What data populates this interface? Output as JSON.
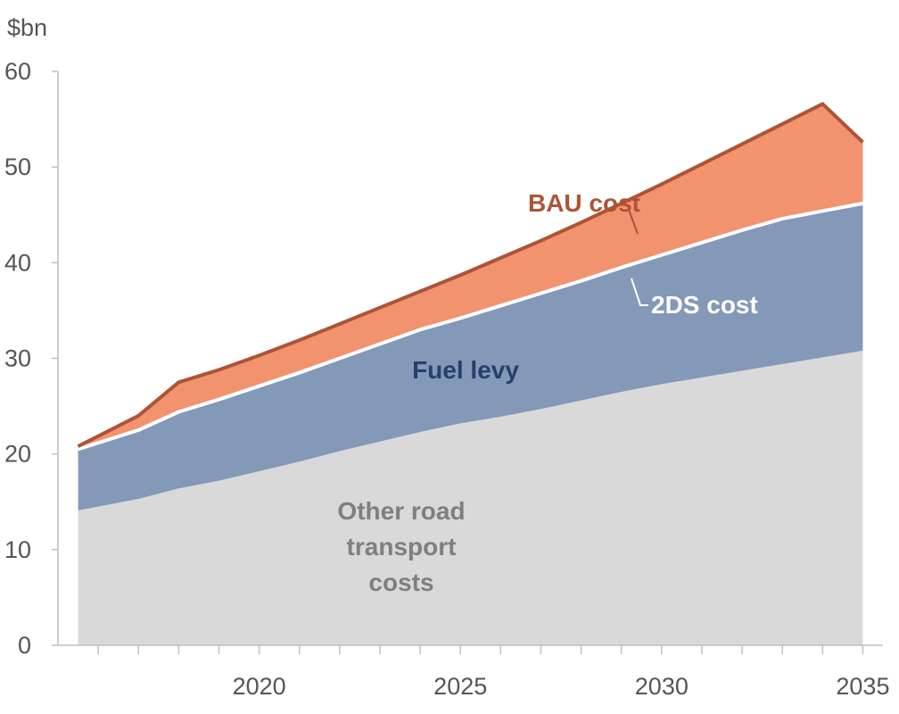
{
  "chart_data": {
    "type": "area",
    "y_unit_label": "$bn",
    "ylim": [
      0,
      60
    ],
    "y_ticks": [
      0,
      10,
      20,
      30,
      40,
      50,
      60
    ],
    "xlim": [
      2015,
      2035.5
    ],
    "x_ticks": [
      2020,
      2025,
      2030,
      2035
    ],
    "x_minor_ticks": [
      2016,
      2017,
      2018,
      2019,
      2021,
      2022,
      2023,
      2024,
      2026,
      2027,
      2028,
      2029,
      2031,
      2032,
      2033,
      2034
    ],
    "grid": false,
    "stacking": "cumulative",
    "x": [
      2015.5,
      2017,
      2018,
      2019,
      2020,
      2021,
      2022,
      2023,
      2024,
      2025,
      2026,
      2027,
      2028,
      2029,
      2030,
      2031,
      2032,
      2033,
      2034,
      2035
    ],
    "series": [
      {
        "key": "other",
        "name": "Other road transport costs",
        "color": "#d9d9d9",
        "top_values": [
          14.1,
          15.3,
          16.4,
          17.2,
          18.2,
          19.2,
          20.3,
          21.3,
          22.3,
          23.2,
          23.9,
          24.7,
          25.6,
          26.5,
          27.3,
          28.0,
          28.7,
          29.4,
          30.1,
          30.8
        ]
      },
      {
        "key": "two_ds",
        "name": "2DS cost",
        "color": "#8498b8",
        "line_color": "#ffffff",
        "top_values": [
          20.5,
          22.5,
          24.4,
          25.7,
          27.1,
          28.5,
          30.0,
          31.5,
          33.0,
          34.2,
          35.5,
          36.8,
          38.1,
          39.5,
          40.8,
          42.1,
          43.4,
          44.6,
          45.4,
          46.2
        ]
      },
      {
        "key": "bau",
        "name": "BAU cost",
        "color": "#f1936e",
        "line_color": "#ad5436",
        "top_values": [
          20.8,
          24.0,
          27.5,
          28.8,
          30.3,
          31.9,
          33.6,
          35.3,
          37.0,
          38.7,
          40.5,
          42.3,
          44.2,
          46.2,
          48.2,
          50.3,
          52.4,
          54.5,
          56.6,
          52.6
        ]
      }
    ],
    "annotations": {
      "bau": "BAU cost",
      "two_ds": "2DS cost",
      "fuel_levy": "Fuel levy",
      "other_line1": "Other road",
      "other_line2": "transport",
      "other_line3": "costs"
    },
    "annotation_colors": {
      "bau": "#ad5436",
      "two_ds": "#ffffff",
      "fuel_levy": "#26406b",
      "other": "#7f7f7f"
    }
  }
}
